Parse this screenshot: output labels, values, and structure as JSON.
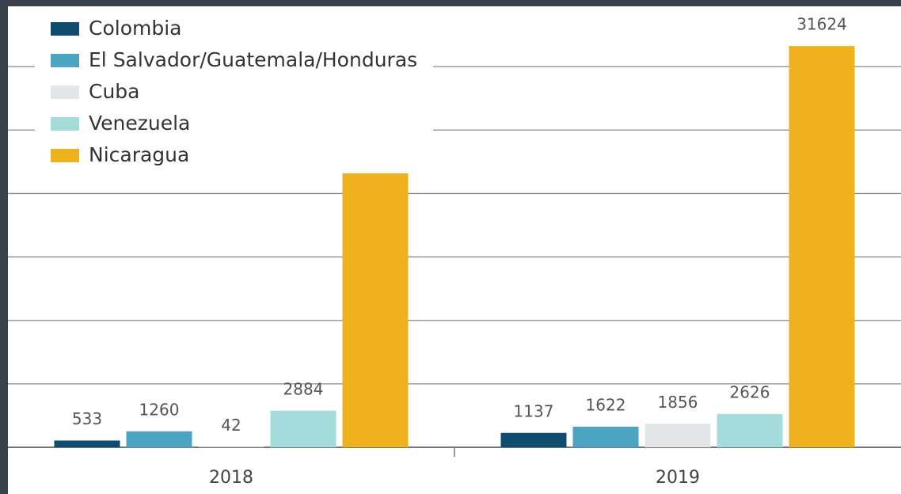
{
  "chart_data": {
    "type": "bar",
    "categories": [
      "2018",
      "2019"
    ],
    "series": [
      {
        "name": "Colombia",
        "color": "#0f4c6e",
        "values": [
          533,
          1137
        ]
      },
      {
        "name": "El Salvador/Guatemala/Honduras",
        "color": "#4ba4c2",
        "values": [
          1260,
          1622
        ]
      },
      {
        "name": "Cuba",
        "color": "#e3e7ea",
        "values": [
          42,
          1856
        ]
      },
      {
        "name": "Venezuela",
        "color": "#a4dcdc",
        "values": [
          2884,
          2626
        ]
      },
      {
        "name": "Nicaragua",
        "color": "#f0b11f",
        "values": [
          23138,
          31624
        ]
      }
    ],
    "ylim": [
      0,
      35000
    ],
    "yticks": [
      0,
      5000,
      10000,
      15000,
      20000,
      25000,
      30000
    ],
    "grid": true,
    "legend": "upper left"
  }
}
